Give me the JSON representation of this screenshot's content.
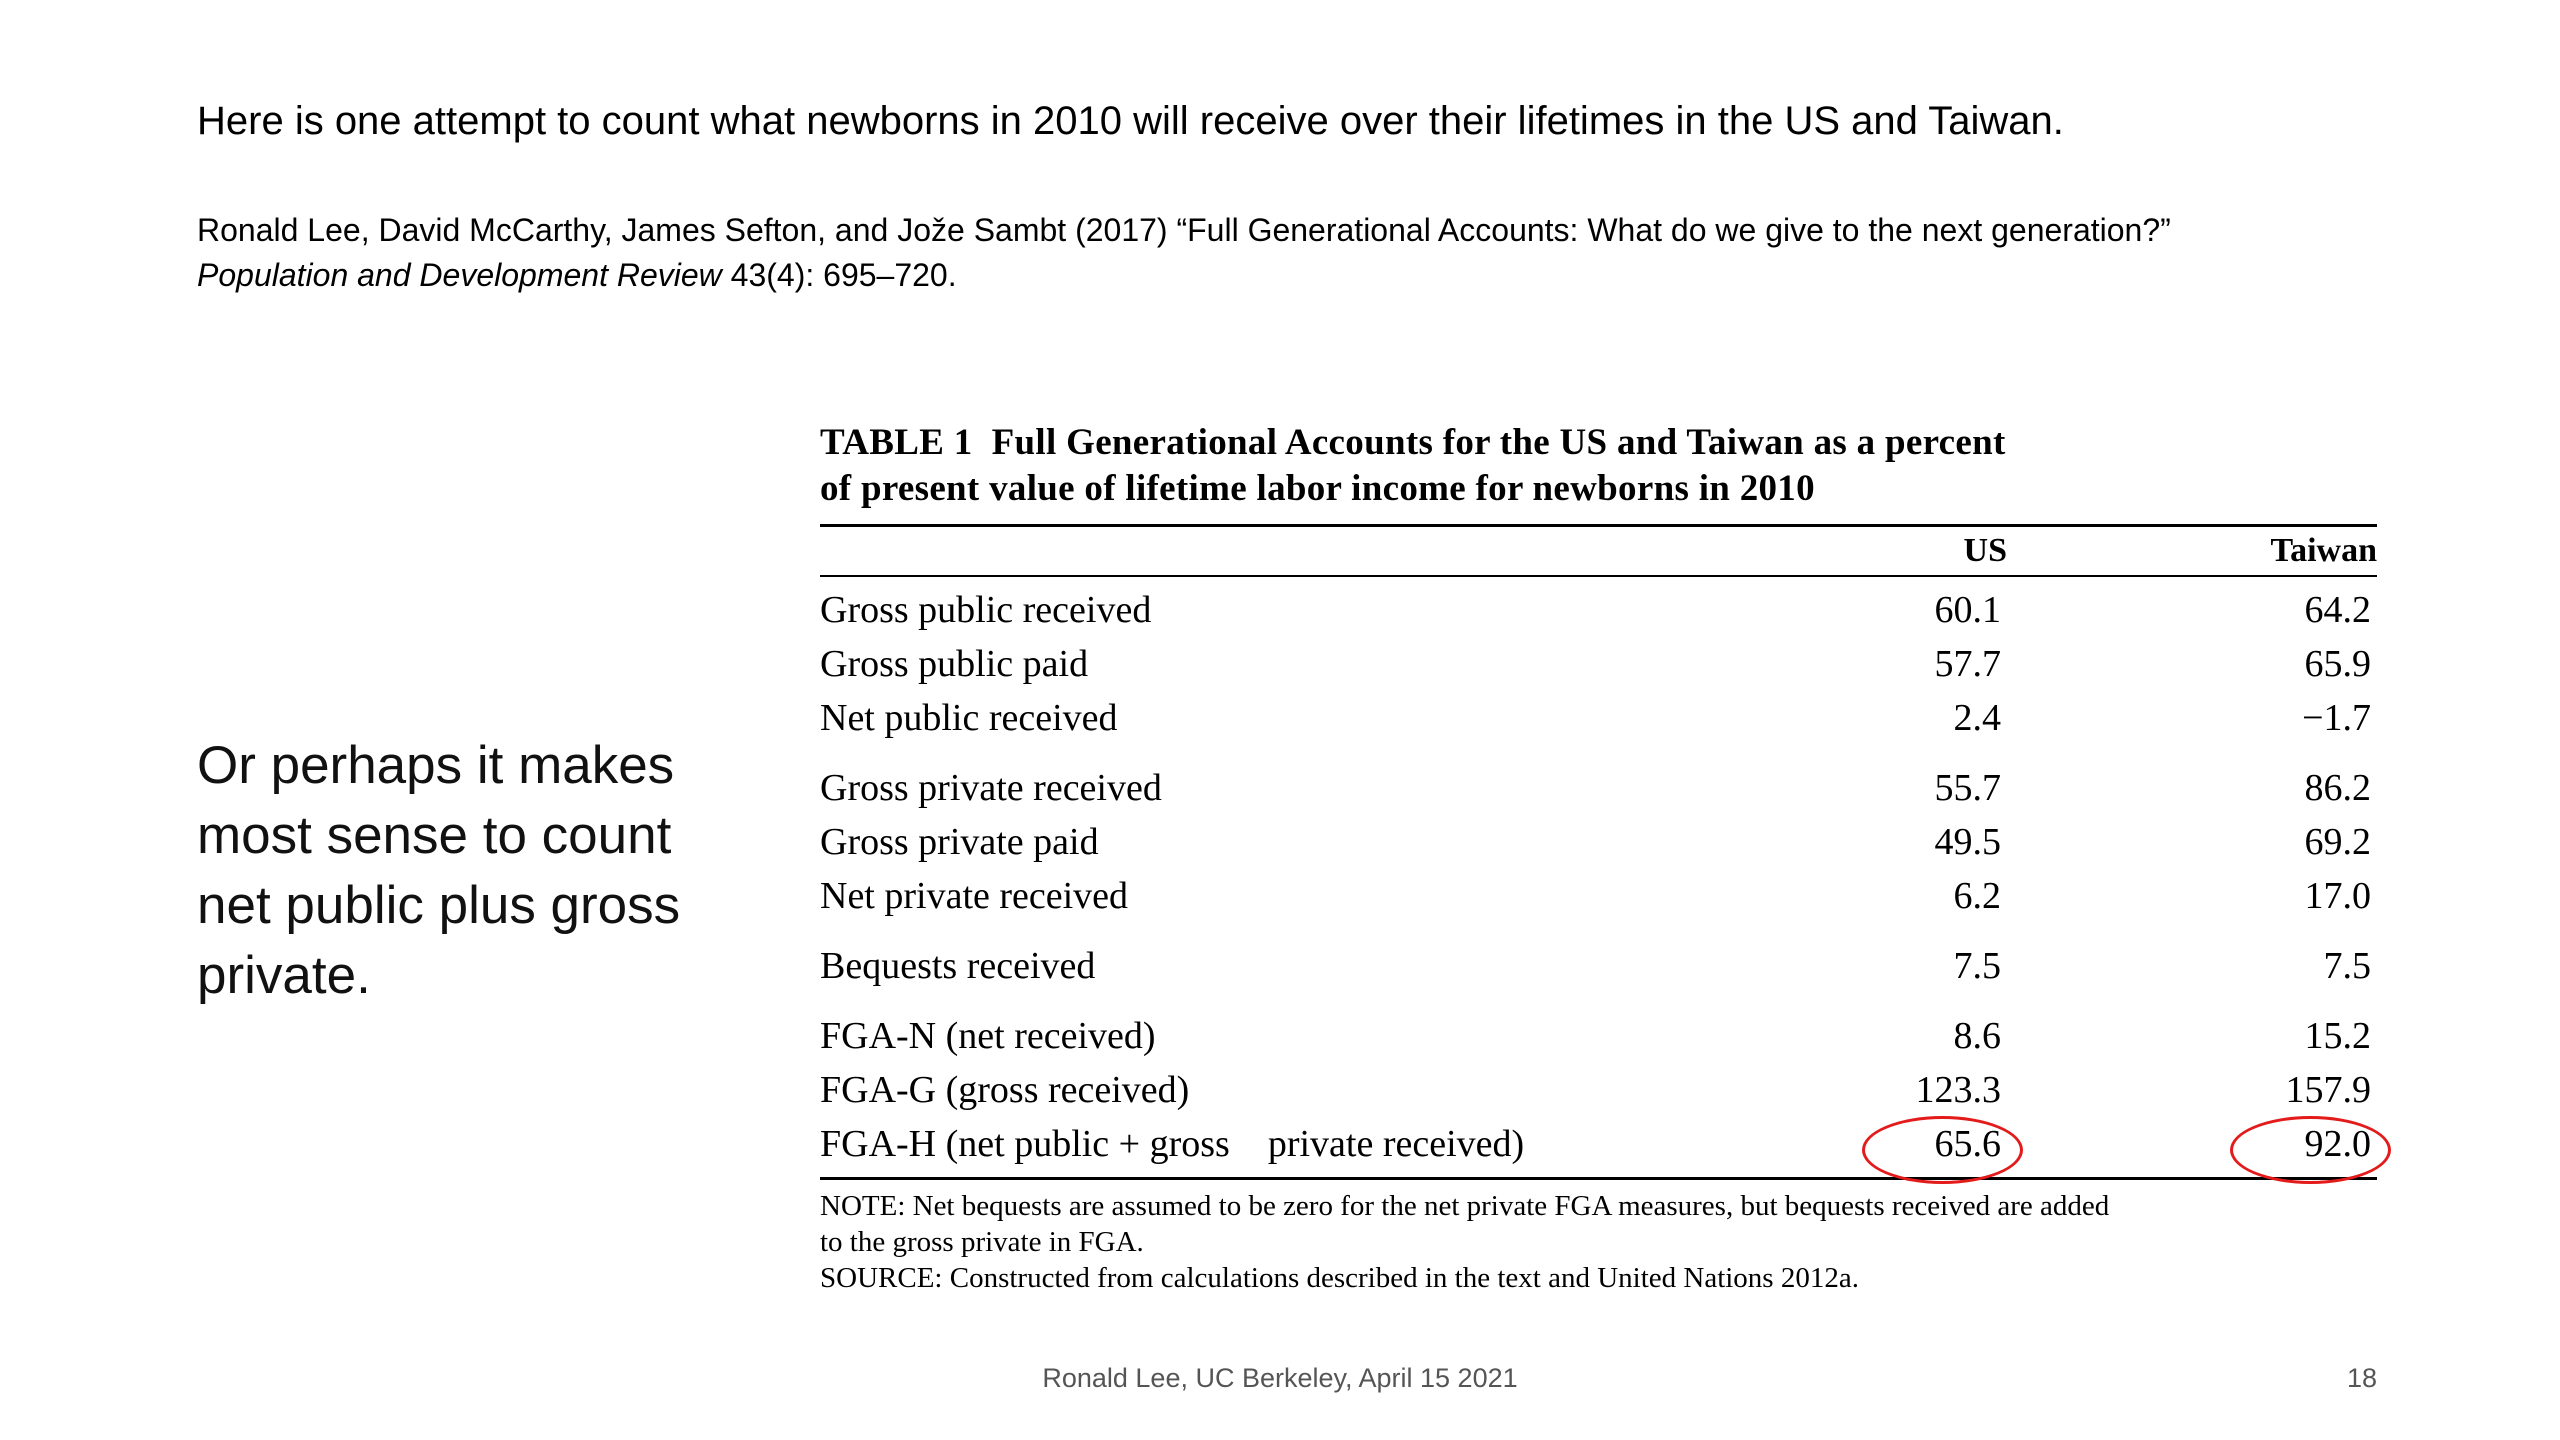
{
  "slide": {
    "headline": "Here is one attempt to count what newborns in 2010 will receive over their lifetimes in the US and Taiwan.",
    "citation_line1": "Ronald Lee, David McCarthy, James Sefton, and Jože Sambt (2017) “Full Generational Accounts: What do we give to the next generation?”",
    "citation_journal": "Population and Development Review",
    "citation_rest": " 43(4): 695–720.",
    "side_note": "Or perhaps it makes most sense to count net public plus gross private.",
    "footer": "Ronald Lee, UC Berkeley, April 15 2021",
    "page_number": "18"
  },
  "table": {
    "caption_line1": "TABLE 1  Full Generational Accounts for the US and Taiwan as a percent",
    "caption_line2": "of present value of lifetime labor income for newborns in 2010",
    "col_us": "US",
    "col_taiwan": "Taiwan",
    "rows": [
      {
        "label": "Gross public received",
        "us": "60.1",
        "taiwan": "64.2"
      },
      {
        "label": "Gross public paid",
        "us": "57.7",
        "taiwan": "65.9"
      },
      {
        "label": "Net public received",
        "us": "2.4",
        "taiwan": "−1.7"
      },
      {
        "label": "Gross private received",
        "us": "55.7",
        "taiwan": "86.2"
      },
      {
        "label": "Gross private paid",
        "us": "49.5",
        "taiwan": "69.2"
      },
      {
        "label": "Net private received",
        "us": "6.2",
        "taiwan": "17.0"
      },
      {
        "label": "Bequests received",
        "us": "7.5",
        "taiwan": "7.5"
      },
      {
        "label": "FGA-N (net received)",
        "us": "8.6",
        "taiwan": "15.2"
      },
      {
        "label": "FGA-G (gross received)",
        "us": "123.3",
        "taiwan": "157.9"
      },
      {
        "label": "FGA-H (net public + gross    private received)",
        "us": "65.6",
        "taiwan": "92.0",
        "highlighted": true
      }
    ],
    "note_line1": "NOTE: Net bequests are assumed to be zero for the net private FGA measures, but bequests received are added",
    "note_line2": "to the gross private in FGA.",
    "source": "SOURCE: Constructed from calculations described in the text and United Nations 2012a."
  },
  "colors": {
    "highlight_circle": "#e31b1b",
    "footer_text": "#555555"
  }
}
